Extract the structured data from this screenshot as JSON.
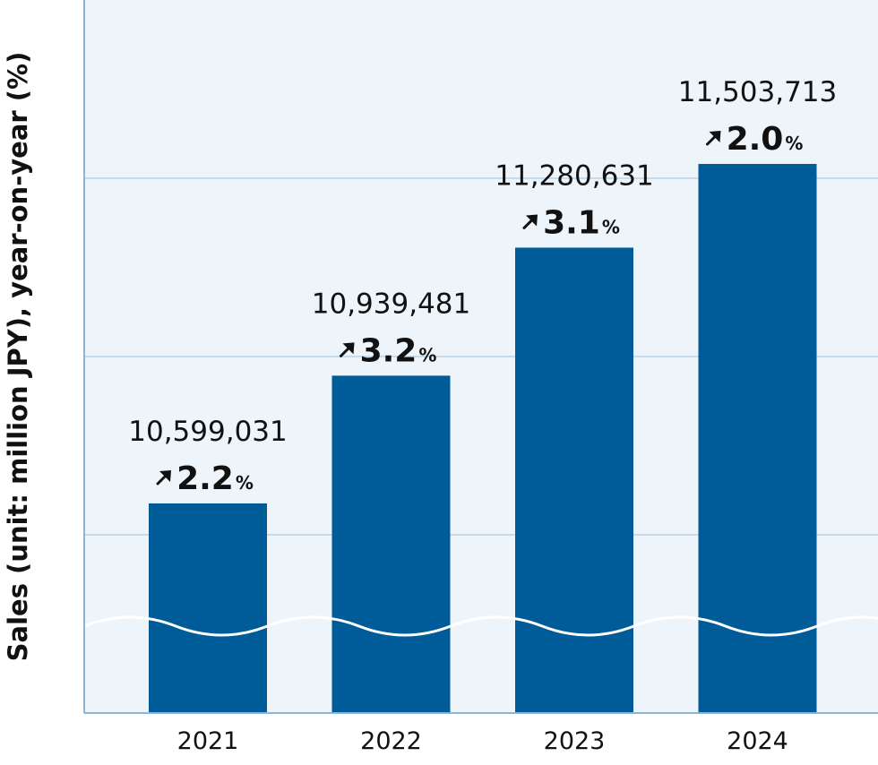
{
  "chart_data": {
    "type": "bar",
    "title": "",
    "xlabel": "",
    "ylabel": "Sales (unit: million JPY), year-on-year (%)",
    "categories": [
      "2021",
      "2022",
      "2023",
      "2024"
    ],
    "values": [
      10599031,
      10939481,
      11280631,
      11503713
    ],
    "value_labels": [
      "10,599,031",
      "10,939,481",
      "11,280,631",
      "11,503,713"
    ],
    "yoy_change": [
      "2.2",
      "3.2",
      "3.1",
      "2.0"
    ],
    "yoy_unit": "%",
    "yoy_arrow_icon": "arrow-up-right-icon",
    "axis_break": true,
    "grid": true,
    "colors": {
      "bar": "#005C99",
      "plot_background": "#EEF5FA",
      "gridline": "#C5DCEC",
      "axis": "#8DB4D3",
      "break_line": "#FFFFFF"
    }
  }
}
